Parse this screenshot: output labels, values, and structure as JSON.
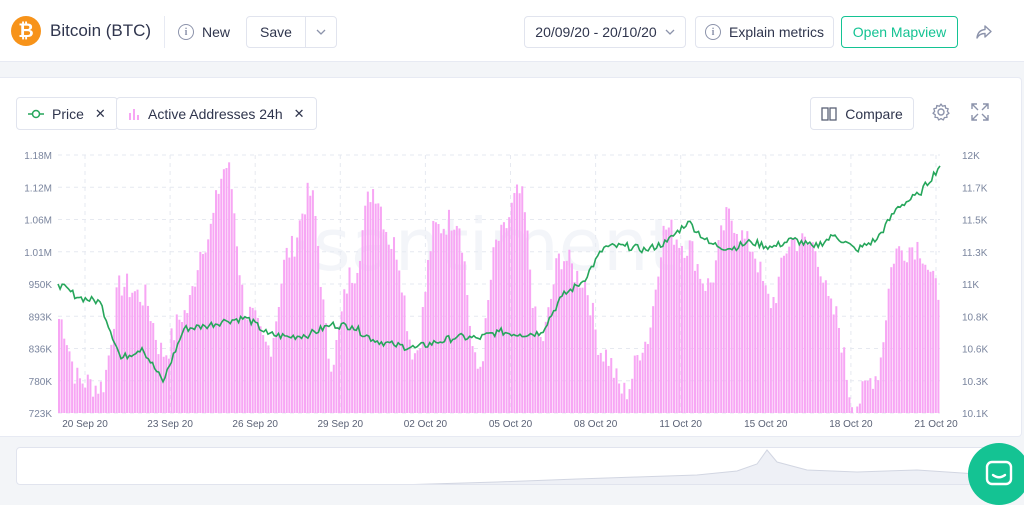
{
  "header": {
    "coin_symbol_icon": "bitcoin-icon",
    "coin_title": "Bitcoin (BTC)",
    "new_label": "New",
    "save_label": "Save",
    "date_range": "20/09/20 - 20/10/20",
    "explain_label": "Explain metrics",
    "mapview_label": "Open Mapview"
  },
  "toolbar": {
    "metrics": [
      {
        "label": "Price",
        "icon": "line-icon",
        "color": "#26a65b"
      },
      {
        "label": "Active Addresses 24h",
        "icon": "bars-icon",
        "color": "#f7a6f4"
      }
    ],
    "compare_label": "Compare"
  },
  "colors": {
    "accent": "#14c393",
    "price_line": "#26a65b",
    "bars": "#f7a6f4",
    "bitcoin": "#f7931a"
  },
  "chart_data": {
    "type": "line+bar",
    "watermark": "·santiment·",
    "left_axis": {
      "ticks": [
        "1.18M",
        "1.12M",
        "1.06M",
        "1.01M",
        "950K",
        "893K",
        "836K",
        "780K",
        "723K"
      ],
      "ylim": [
        723000,
        1180000
      ]
    },
    "right_axis": {
      "ticks": [
        "12K",
        "11.7K",
        "11.5K",
        "11.3K",
        "11K",
        "10.8K",
        "10.6K",
        "10.3K",
        "10.1K"
      ],
      "ylim": [
        10100,
        12000
      ]
    },
    "x_ticks": [
      "20 Sep 20",
      "23 Sep 20",
      "26 Sep 20",
      "29 Sep 20",
      "02 Oct 20",
      "05 Oct 20",
      "08 Oct 20",
      "11 Oct 20",
      "15 Oct 20",
      "18 Oct 20",
      "21 Oct 20"
    ],
    "series": [
      {
        "name": "Price",
        "kind": "line",
        "axis": "right",
        "values": [
          11050,
          10950,
          10920,
          10500,
          10580,
          10330,
          10720,
          10740,
          10780,
          10800,
          10680,
          10660,
          10680,
          10750,
          10740,
          10640,
          10600,
          10580,
          10620,
          10660,
          10650,
          10700,
          10680,
          10690,
          10960,
          11070,
          11320,
          11330,
          11300,
          11360,
          11510,
          11350,
          11310,
          11360,
          11320,
          11380,
          11320,
          11410,
          11300,
          11380,
          11620,
          11710,
          11920
        ]
      },
      {
        "name": "Active Addresses 24h",
        "kind": "bar",
        "axis": "left",
        "values": [
          890000,
          780000,
          770000,
          950000,
          930000,
          830000,
          900000,
          1030000,
          1160000,
          900000,
          840000,
          1010000,
          1110000,
          820000,
          970000,
          1120000,
          1020000,
          830000,
          1050000,
          1070000,
          800000,
          1030000,
          1110000,
          850000,
          1000000,
          960000,
          830000,
          760000,
          850000,
          1050000,
          1020000,
          950000,
          1070000,
          1020000,
          920000,
          1030000,
          1020000,
          900000,
          740000,
          790000,
          1010000,
          1020000,
          940000
        ]
      }
    ],
    "grid": true
  }
}
